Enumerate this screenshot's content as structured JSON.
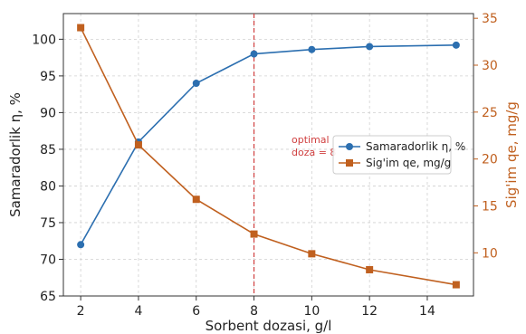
{
  "chart_data": {
    "type": "line",
    "xlabel": "Sorbent dozasi, g/l",
    "x": [
      2,
      4,
      6,
      8,
      10,
      12,
      15
    ],
    "xticks": [
      2,
      4,
      6,
      8,
      10,
      12,
      14
    ],
    "xlim": [
      1.4,
      15.6
    ],
    "grid": true,
    "legend_placement": "center-right",
    "y_left": {
      "label": "Samaradorlik η, %",
      "lim": [
        65,
        103.5
      ],
      "ticks": [
        65,
        70,
        75,
        80,
        85,
        90,
        95,
        100
      ],
      "color": "#333333"
    },
    "y_right": {
      "label": "Sig'im qe, mg/g",
      "lim": [
        5.4,
        35.5
      ],
      "ticks": [
        10,
        15,
        20,
        25,
        30,
        35
      ],
      "color": "#c0601f"
    },
    "series": [
      {
        "name": "Samaradorlik η, %",
        "axis": "left",
        "marker": "circle",
        "color": "#2c6fb0",
        "values": [
          72,
          86,
          94,
          98,
          98.6,
          99,
          99.2
        ]
      },
      {
        "name": "Sig'im qe, mg/g",
        "axis": "right",
        "marker": "square",
        "color": "#c0601f",
        "values": [
          34,
          21.5,
          15.7,
          12,
          9.9,
          8.2,
          6.6
        ]
      }
    ],
    "annotation": {
      "x": 8,
      "line_color": "#d04040",
      "text_line1": "optimal",
      "text_line2": "doza = 8"
    }
  }
}
